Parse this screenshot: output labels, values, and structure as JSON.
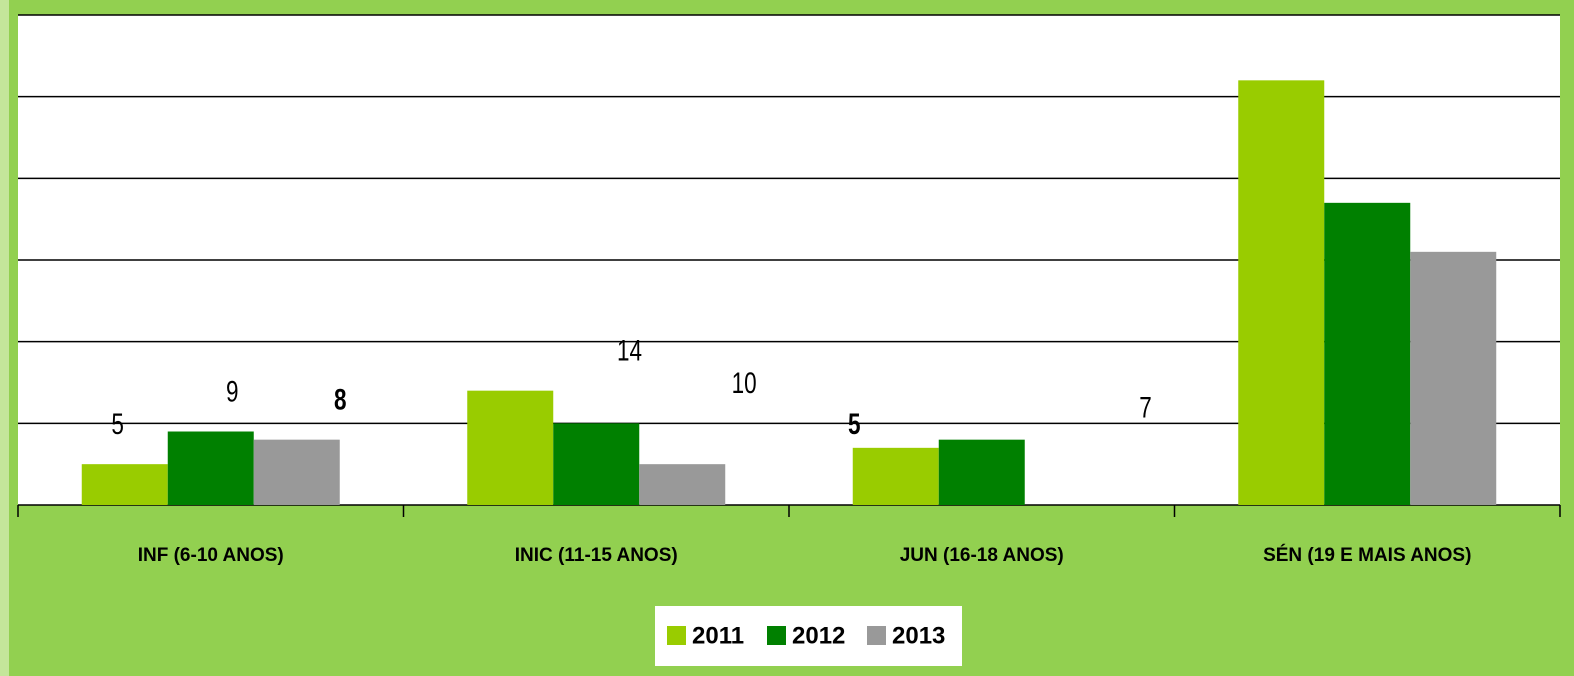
{
  "chart_data": {
    "type": "bar",
    "categories": [
      "INF (6-10 ANOS)",
      "INIC (11-15 ANOS)",
      "JUN (16-18 ANOS)",
      "SÉN (19 E MAIS ANOS)"
    ],
    "series": [
      {
        "name": "2011",
        "color": "#99cc00",
        "values": [
          5,
          14,
          7,
          52
        ]
      },
      {
        "name": "2012",
        "color": "#008000",
        "values": [
          9,
          10,
          8,
          37
        ]
      },
      {
        "name": "2013",
        "color": "#999999",
        "values": [
          8,
          5,
          0,
          31
        ]
      }
    ],
    "ylim": [
      0,
      60
    ],
    "yticks": [
      0,
      10,
      20,
      30,
      40,
      50,
      60
    ],
    "grid": true,
    "legend": "bottom"
  }
}
